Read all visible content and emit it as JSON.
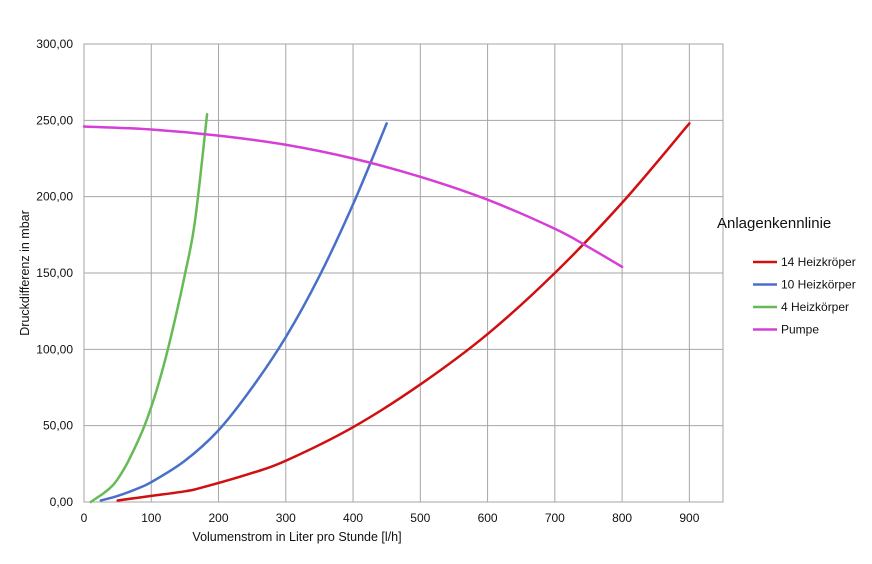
{
  "chart_data": {
    "type": "line",
    "title": "",
    "xlabel": "Volumenstrom in Liter pro Stunde [l/h]",
    "ylabel": "Druckdifferenz in mbar",
    "xlim": [
      0,
      950
    ],
    "ylim": [
      0,
      300
    ],
    "x_ticks": [
      "0",
      "100",
      "200",
      "300",
      "400",
      "500",
      "600",
      "700",
      "800",
      "900"
    ],
    "y_ticks": [
      "0,00",
      "50,00",
      "100,00",
      "150,00",
      "200,00",
      "250,00",
      "300,00"
    ],
    "grid": true,
    "legend_title": "Anlagenkennlinie",
    "legend_position": "right",
    "series": [
      {
        "name": "14 Heizkröper",
        "color": "#d01010",
        "x": [
          50,
          100,
          150,
          180,
          250,
          300,
          400,
          500,
          600,
          700,
          800,
          900
        ],
        "y": [
          1,
          4,
          7,
          10,
          19,
          27,
          49,
          77,
          110,
          150,
          196,
          248
        ]
      },
      {
        "name": "10 Heizkörper",
        "color": "#4a6fc8",
        "x": [
          25,
          50,
          75,
          100,
          150,
          200,
          250,
          300,
          350,
          400,
          450
        ],
        "y": [
          1,
          4,
          8,
          13,
          27,
          47,
          75,
          108,
          148,
          195,
          248
        ]
      },
      {
        "name": "4 Heizkörper",
        "color": "#66bb55",
        "x": [
          10,
          20,
          30,
          45,
          60,
          75,
          90,
          105,
          120,
          135,
          150,
          165,
          183
        ],
        "y": [
          0,
          3,
          6,
          12,
          22,
          35,
          50,
          69,
          92,
          119,
          149,
          184,
          254
        ]
      },
      {
        "name": "Pumpe",
        "color": "#d63fd6",
        "x": [
          0,
          100,
          200,
          300,
          400,
          500,
          600,
          700,
          750,
          800
        ],
        "y": [
          246,
          244,
          240,
          234,
          225,
          213,
          198,
          179,
          167,
          154
        ]
      }
    ]
  }
}
